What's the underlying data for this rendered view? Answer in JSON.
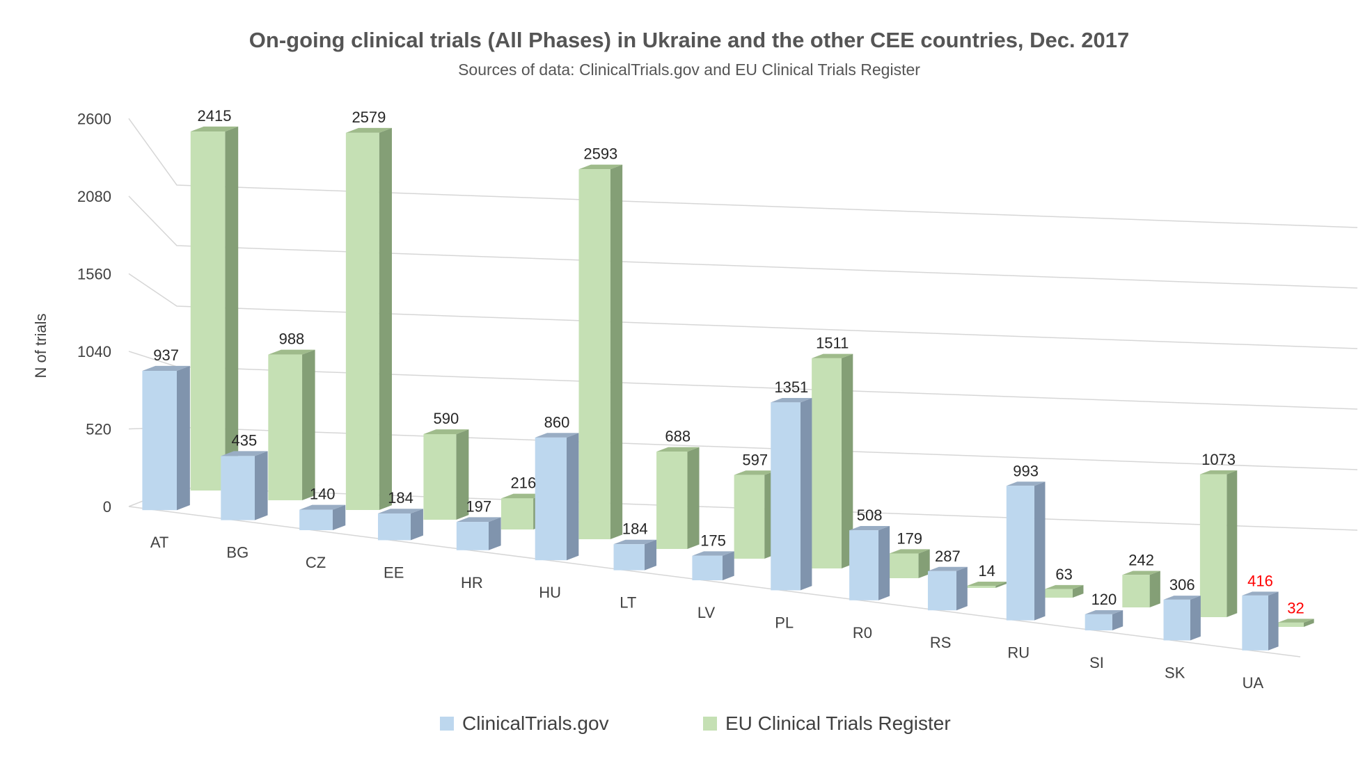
{
  "chart_data": {
    "type": "bar",
    "title": "On-going clinical trials (All Phases) in Ukraine and the other CEE countries, Dec. 2017",
    "subtitle": "Sources of data: ClinicalTrials.gov and  EU Clinical Trials Register",
    "ylabel": "N of trials",
    "xlabel": "",
    "ylim": [
      0,
      2600
    ],
    "yticks": [
      "0",
      "520",
      "1040",
      "1560",
      "2080",
      "2600"
    ],
    "grid": true,
    "legend_position": "bottom",
    "style": "3d-clustered-column",
    "categories": [
      "AT",
      "BG",
      "CZ",
      "EE",
      "HR",
      "HU",
      "LT",
      "LV",
      "PL",
      "R0",
      "RS",
      "RU",
      "SI",
      "SK",
      "UA"
    ],
    "series": [
      {
        "name": "ClinicalTrials.gov",
        "color": "#bdd7ee",
        "values": [
          937,
          435,
          140,
          184,
          197,
          860,
          184,
          175,
          1351,
          508,
          287,
          993,
          120,
          306,
          416
        ]
      },
      {
        "name": "EU Clinical Trials Register",
        "color": "#c5e0b4",
        "values": [
          2415,
          988,
          2579,
          590,
          216,
          2593,
          688,
          597,
          1511,
          179,
          14,
          63,
          242,
          1073,
          32
        ]
      }
    ],
    "highlight": {
      "category": "UA",
      "label_color": "#ff0000"
    },
    "labels_text": {
      "ClinicalTrials.gov": [
        "937",
        "435",
        "140",
        "184",
        "197",
        "860",
        "184",
        "175",
        "1351",
        "508",
        "287",
        "993",
        "120",
        "306",
        "416"
      ],
      "EU Clinical Trials Register": [
        "2415",
        "988",
        "2579",
        "590",
        "216",
        "2593",
        "688",
        "597",
        "1511",
        "179",
        "14",
        "63",
        "242",
        "1073",
        "32"
      ]
    }
  }
}
